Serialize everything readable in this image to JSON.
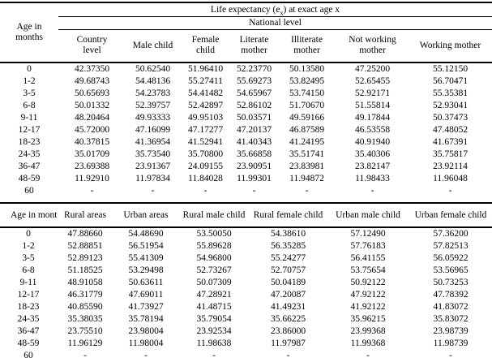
{
  "page": {
    "background": "#ffffff",
    "text_color": "#000000"
  },
  "table1": {
    "title_pre": "Life expectancy (e",
    "title_sub": "x",
    "title_post": ") at exact age x",
    "subtitle": "National level",
    "age_header": "Age in months",
    "columns": [
      "Country level",
      "Male child",
      "Female child",
      "Literate mother",
      "Illiterate mother",
      "Not working mother",
      "Working mother"
    ],
    "rows": [
      {
        "age": "0",
        "values": [
          "42.37350",
          "50.62540",
          "51.96410",
          "52.23770",
          "50.13580",
          "47.25200",
          "55.12150"
        ]
      },
      {
        "age": "1-2",
        "values": [
          "49.68743",
          "54.48136",
          "55.27411",
          "55.69273",
          "53.82495",
          "52.65455",
          "56.70471"
        ]
      },
      {
        "age": "3-5",
        "values": [
          "50.65693",
          "54.23783",
          "54.41482",
          "54.65967",
          "53.74150",
          "52.92171",
          "55.35381"
        ]
      },
      {
        "age": "6-8",
        "values": [
          "50.01332",
          "52.39757",
          "52.42897",
          "52.86102",
          "51.70670",
          "51.55814",
          "52.93041"
        ]
      },
      {
        "age": "9-11",
        "values": [
          "48.20464",
          "49.93333",
          "49.95103",
          "50.03571",
          "49.59166",
          "49.17844",
          "50.37473"
        ]
      },
      {
        "age": "12-17",
        "values": [
          "45.72000",
          "47.16099",
          "47.17277",
          "47.20137",
          "46.87589",
          "46.53558",
          "47.48052"
        ]
      },
      {
        "age": "18-23",
        "values": [
          "40.37815",
          "41.36954",
          "41.52941",
          "41.40343",
          "41.24195",
          "40.91940",
          "41.67391"
        ]
      },
      {
        "age": "24-35",
        "values": [
          "35.01709",
          "35.73540",
          "35.70800",
          "35.66858",
          "35.51741",
          "35.40306",
          "35.75817"
        ]
      },
      {
        "age": "36-47",
        "values": [
          "23.69388",
          "23.91367",
          "24.09155",
          "23.90951",
          "23.83981",
          "23.82147",
          "23.92114"
        ]
      },
      {
        "age": "48-59",
        "values": [
          "11.92910",
          "11.97834",
          "11.84028",
          "11.99301",
          "11.94872",
          "11.98433",
          "11.96048"
        ]
      },
      {
        "age": "60",
        "values": [
          "-",
          "-",
          "-",
          "-",
          "-",
          "-",
          "-"
        ]
      }
    ]
  },
  "table2": {
    "age_header": "Age in months",
    "columns": [
      "Rural areas",
      "Urban areas",
      "Rural male child",
      "Rural female child",
      "Urban male child",
      "Urban female child"
    ],
    "rows": [
      {
        "age": "0",
        "values": [
          "47.88660",
          "54.48690",
          "53.50050",
          "54.38610",
          "57.12490",
          "57.36200"
        ]
      },
      {
        "age": "1-2",
        "values": [
          "52.88851",
          "56.51954",
          "55.89628",
          "56.35285",
          "57.76183",
          "57.82513"
        ]
      },
      {
        "age": "3-5",
        "values": [
          "52.89123",
          "55.41309",
          "54.96800",
          "55.24277",
          "56.41155",
          "56.05922"
        ]
      },
      {
        "age": "6-8",
        "values": [
          "51.18525",
          "53.29498",
          "52.73267",
          "52.70757",
          "53.75654",
          "53.56965"
        ]
      },
      {
        "age": "9-11",
        "values": [
          "48.91058",
          "50.63611",
          "50.07309",
          "50.04189",
          "50.92122",
          "50.73253"
        ]
      },
      {
        "age": "12-17",
        "values": [
          "46.31779",
          "47.69011",
          "47.28921",
          "47.20087",
          "47.92122",
          "47.78392"
        ]
      },
      {
        "age": "18-23",
        "values": [
          "40.85590",
          "41.73927",
          "41.48715",
          "41.49231",
          "41.92122",
          "41.83072"
        ]
      },
      {
        "age": "24-35",
        "values": [
          "35.38035",
          "35.78194",
          "35.79054",
          "35.66225",
          "35.96215",
          "35.83072"
        ]
      },
      {
        "age": "36-47",
        "values": [
          "23.75510",
          "23.98004",
          "23.92534",
          "23.86000",
          "23.99368",
          "23.98739"
        ]
      },
      {
        "age": "48-59",
        "values": [
          "11.96129",
          "11.98004",
          "11.98638",
          "11.97987",
          "11.99368",
          "11.98739"
        ]
      },
      {
        "age": "60",
        "values": [
          "-",
          "-",
          "-",
          "-",
          "-",
          "-"
        ]
      }
    ]
  }
}
